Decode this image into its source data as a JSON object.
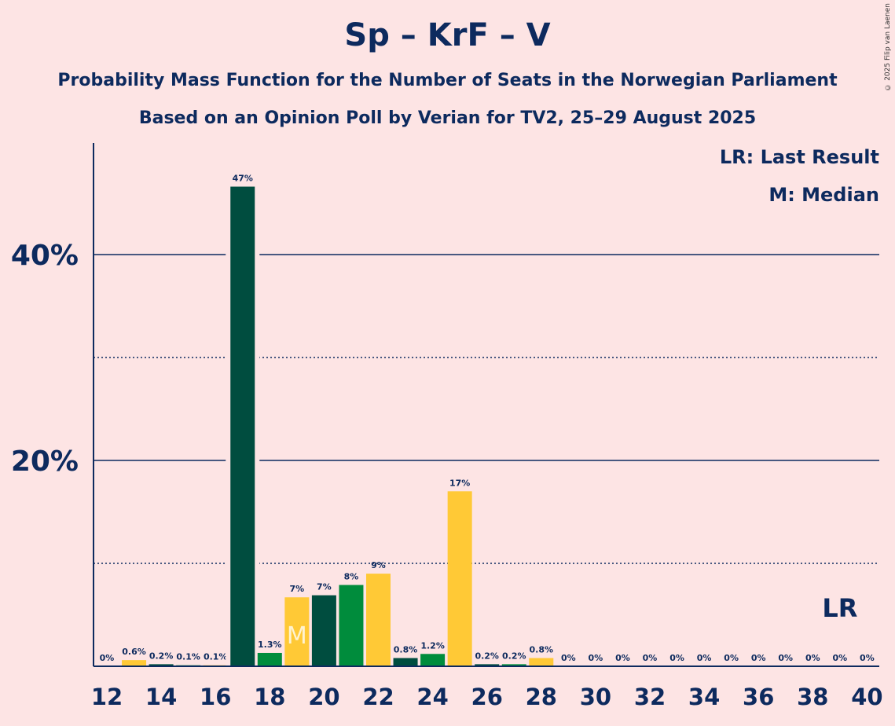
{
  "title": "Sp – KrF – V",
  "subtitle1": "Probability Mass Function for the Number of Seats in the Norwegian Parliament",
  "subtitle2": "Based on an Opinion Poll by Verian for TV2, 25–29 August 2025",
  "copyright": "© 2025 Filip van Laenen",
  "legend": {
    "lr": "LR: Last Result",
    "m": "M: Median"
  },
  "colors": {
    "background": "#fde4e4",
    "text": "#0d2a5e",
    "dark_green": "#004d3f",
    "green": "#008c3c",
    "yellow": "#ffc936"
  },
  "chart_data": {
    "type": "bar",
    "categories": [
      12,
      13,
      14,
      15,
      16,
      17,
      18,
      19,
      20,
      21,
      22,
      23,
      24,
      25,
      26,
      27,
      28,
      29,
      30,
      31,
      32,
      33,
      34,
      35,
      36,
      37,
      38,
      39,
      40
    ],
    "values": [
      0,
      0.6,
      0.2,
      0.1,
      0.1,
      46.6,
      1.3,
      6.7,
      6.9,
      7.9,
      9.0,
      0.8,
      1.2,
      17.0,
      0.2,
      0.2,
      0.8,
      0,
      0,
      0,
      0,
      0,
      0,
      0,
      0,
      0,
      0,
      0,
      0
    ],
    "labels": [
      "0%",
      "0.6%",
      "0.2%",
      "0.1%",
      "0.1%",
      "47%",
      "1.3%",
      "7%",
      "7%",
      "8%",
      "9%",
      "0.8%",
      "1.2%",
      "17%",
      "0.2%",
      "0.2%",
      "0.8%",
      "0%",
      "0%",
      "0%",
      "0%",
      "0%",
      "0%",
      "0%",
      "0%",
      "0%",
      "0%",
      "0%",
      "0%"
    ],
    "bar_colors": [
      "yellow",
      "yellow",
      "dark_green",
      "green",
      "yellow",
      "dark_green",
      "green",
      "yellow",
      "dark_green",
      "green",
      "yellow",
      "dark_green",
      "green",
      "yellow",
      "dark_green",
      "green",
      "yellow",
      "dark_green",
      "green",
      "yellow",
      "dark_green",
      "green",
      "yellow",
      "dark_green",
      "green",
      "yellow",
      "dark_green",
      "green",
      "yellow"
    ],
    "xticks": [
      12,
      14,
      16,
      18,
      20,
      22,
      24,
      26,
      28,
      30,
      32,
      34,
      36,
      38,
      40
    ],
    "yticks": [
      20,
      40
    ],
    "ytick_labels": [
      "20%",
      "40%"
    ],
    "ygrid_dotted": [
      10,
      30
    ],
    "ylim": [
      0,
      50
    ],
    "median": 19,
    "median_label": "M",
    "last_result": 39,
    "last_result_label": "LR"
  }
}
